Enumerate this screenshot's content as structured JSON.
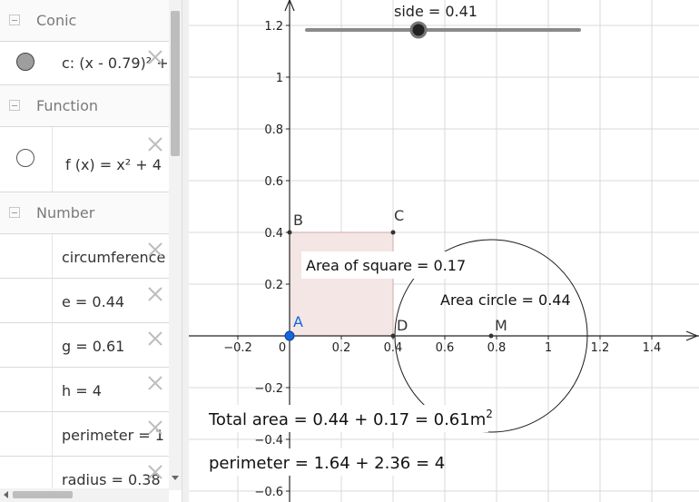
{
  "algebra": {
    "categories": {
      "conic": "Conic",
      "function": "Function",
      "number": "Number"
    },
    "items": {
      "conic_c": "c: (x - 0.79)² +",
      "function_f": "f (x) = x² + 4",
      "circumference": "circumference",
      "e": "e = 0.44",
      "g": "g = 0.61",
      "h": "h = 4",
      "perimeter": "perimeter = 1",
      "radius": "radius = 0.38"
    }
  },
  "graphics": {
    "slider_label": "side = 0.41",
    "slider_value": 0.41,
    "points": {
      "A": "A",
      "B": "B",
      "C": "C",
      "D": "D",
      "M": "M"
    },
    "area_square_label": "Area of square = 0.17",
    "area_circle_label": "Area circle = 0.44",
    "total_area_text": "Total area = 0.44 + 0.17 = 0.61m",
    "total_area_unit_exp": "2",
    "perimeter_text": "perimeter = 1.64 + 2.36 = 4",
    "axis": {
      "x_ticks": [
        "−0.2",
        "0",
        "0.2",
        "0.4",
        "0.6",
        "0.8",
        "1",
        "1.2",
        "1.4"
      ],
      "y_ticks": [
        "1.2",
        "1",
        "0.8",
        "0.6",
        "0.4",
        "0.2",
        "−0.2",
        "−0.4",
        "−0.6"
      ]
    },
    "colors": {
      "point_blue": "#1565e0",
      "square_fill": "#f4e6e4",
      "grid": "#d9d9d9",
      "axis": "#252525"
    }
  }
}
